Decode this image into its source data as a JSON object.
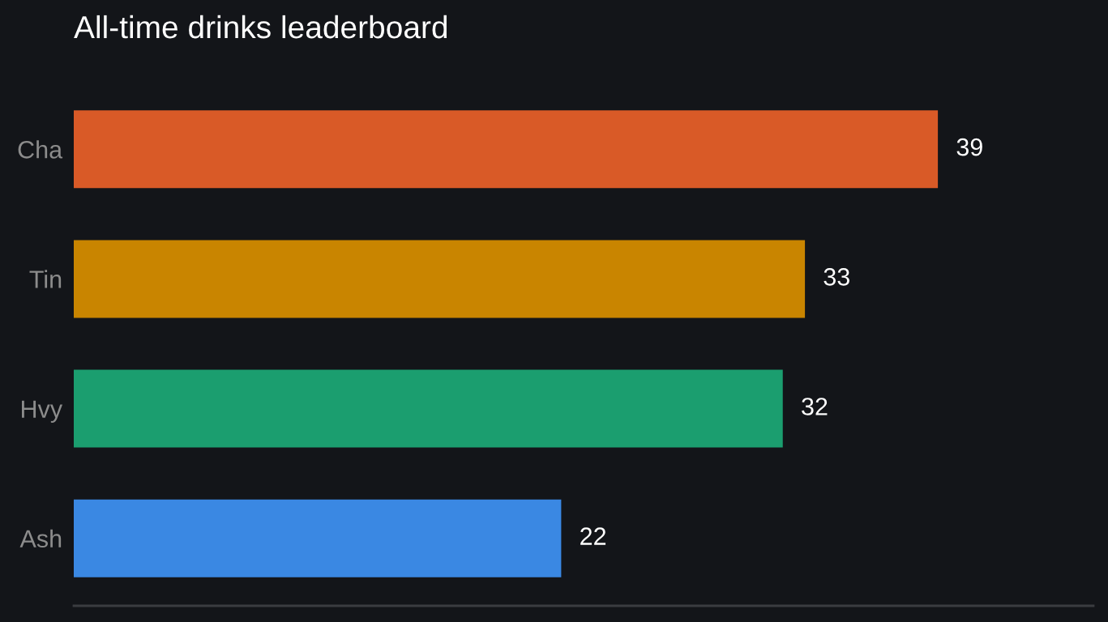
{
  "chart_data": {
    "type": "bar",
    "orientation": "horizontal",
    "title": "All-time drinks leaderboard",
    "categories": [
      "Cha",
      "Tin",
      "Hvy",
      "Ash"
    ],
    "values": [
      39,
      33,
      32,
      22
    ],
    "colors": [
      "#d95a27",
      "#c98500",
      "#1b9e6f",
      "#3a88e3"
    ],
    "data_labels": true,
    "grid": false,
    "legend": false
  }
}
